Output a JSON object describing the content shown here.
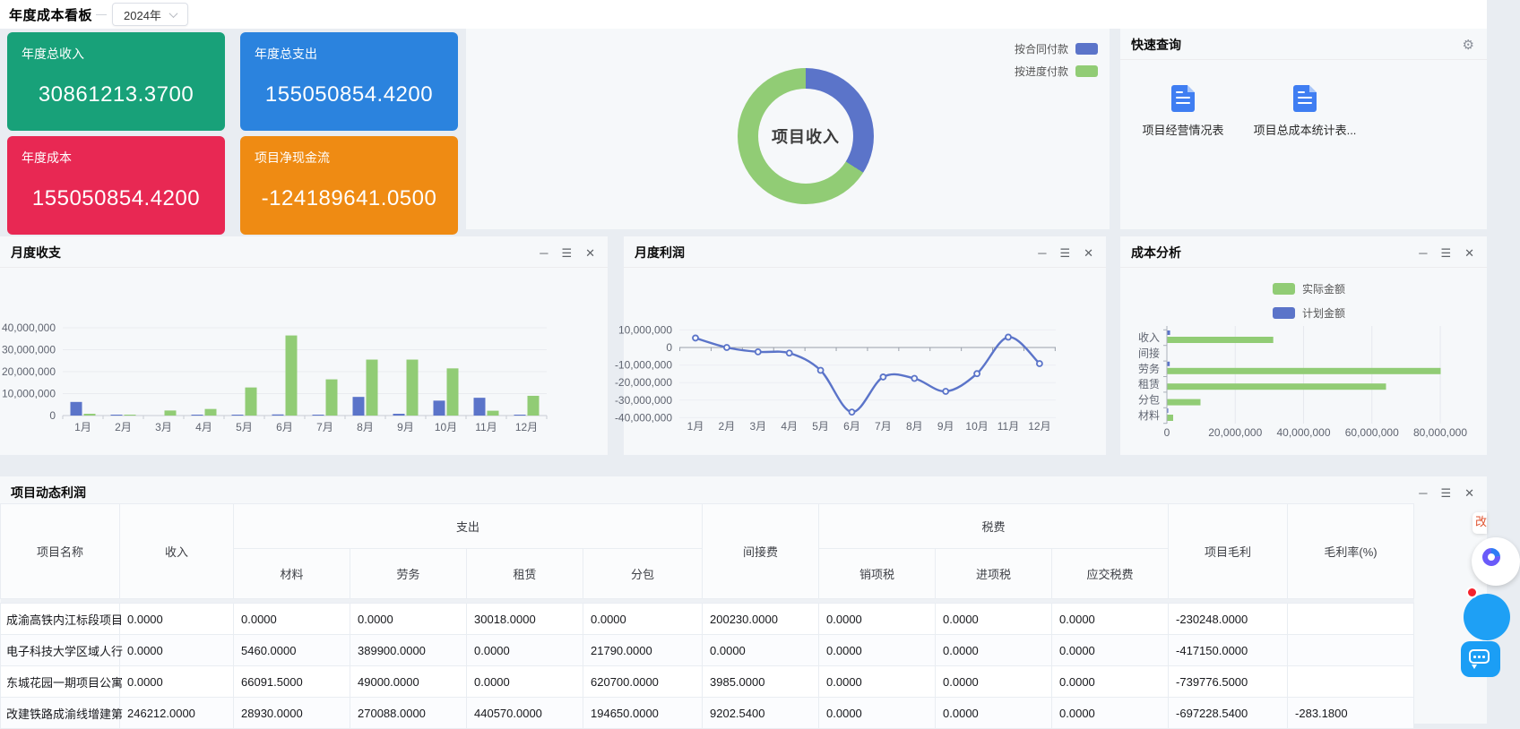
{
  "app": {
    "title": "年度成本看板",
    "year_select": {
      "value": "2024年"
    }
  },
  "kpi_cards": [
    {
      "label": "年度总收入",
      "value": "30861213.3700",
      "color": "#18a179"
    },
    {
      "label": "年度总支出",
      "value": "155050854.4200",
      "color": "#2b83de"
    },
    {
      "label": "年度成本",
      "value": "155050854.4200",
      "color": "#e82853"
    },
    {
      "label": "项目净现金流",
      "value": "-124189641.0500",
      "color": "#ef8b13"
    }
  ],
  "quick_query": {
    "title": "快速查询",
    "items": [
      {
        "label": "项目经营情况表"
      },
      {
        "label": "项目总成本统计表..."
      }
    ]
  },
  "panels": {
    "monthly_balance_title": "月度收支",
    "monthly_profit_title": "月度利润",
    "cost_analysis_title": "成本分析",
    "table_title": "项目动态利润"
  },
  "chart_data": [
    {
      "id": "project-income-donut",
      "type": "pie",
      "center_label": "项目收入",
      "legend_position": "top-right",
      "series": [
        {
          "name": "按合同付款",
          "color": "#5b74c9",
          "percent": 34
        },
        {
          "name": "按进度付款",
          "color": "#91cc75",
          "percent": 66
        }
      ]
    },
    {
      "id": "monthly-balance",
      "type": "bar",
      "title": "月度收支",
      "categories": [
        "1月",
        "2月",
        "3月",
        "4月",
        "5月",
        "6月",
        "7月",
        "8月",
        "9月",
        "10月",
        "11月",
        "12月"
      ],
      "series": [
        {
          "color": "#5b74c9",
          "values": [
            6200000,
            400000,
            0,
            400000,
            150000,
            500000,
            300000,
            8500000,
            800000,
            6800000,
            8100000,
            300000
          ]
        },
        {
          "color": "#91cc75",
          "values": [
            800000,
            400000,
            2300000,
            3000000,
            12800000,
            36500000,
            16500000,
            25500000,
            25500000,
            21500000,
            2200000,
            9000000
          ]
        }
      ],
      "ylim": [
        0,
        40000000
      ],
      "yticks": [
        {
          "v": 0,
          "label": "0"
        },
        {
          "v": 10000000,
          "label": "10,000,000"
        },
        {
          "v": 20000000,
          "label": "20,000,000"
        },
        {
          "v": 30000000,
          "label": "30,000,000"
        },
        {
          "v": 40000000,
          "label": "40,000,000"
        }
      ]
    },
    {
      "id": "monthly-profit",
      "type": "line",
      "title": "月度利润",
      "color": "#5b74c9",
      "categories": [
        "1月",
        "2月",
        "3月",
        "4月",
        "5月",
        "6月",
        "7月",
        "8月",
        "9月",
        "10月",
        "11月",
        "12月"
      ],
      "values": [
        5400000,
        0,
        -2500000,
        -3200000,
        -13000000,
        -36800000,
        -16800000,
        -17600000,
        -25000000,
        -14900000,
        5900000,
        -9200000
      ],
      "ylim": [
        -40000000,
        10000000
      ],
      "yticks": [
        {
          "v": 10000000,
          "label": "10,000,000"
        },
        {
          "v": 0,
          "label": "0"
        },
        {
          "v": -10000000,
          "label": "-10,000,000"
        },
        {
          "v": -20000000,
          "label": "-20,000,000"
        },
        {
          "v": -30000000,
          "label": "-30,000,000"
        },
        {
          "v": -40000000,
          "label": "-40,000,000"
        }
      ]
    },
    {
      "id": "cost-analysis",
      "type": "hbar",
      "title": "成本分析",
      "categories": [
        "收入",
        "间接",
        "劳务",
        "租赁",
        "分包",
        "材料"
      ],
      "series": [
        {
          "name": "实际金额",
          "color": "#91cc75",
          "values": [
            31000000,
            0,
            80000000,
            64000000,
            9700000,
            1700000
          ]
        },
        {
          "name": "计划金额",
          "color": "#5b74c9",
          "values": [
            800000,
            0,
            700000,
            0,
            0,
            200000
          ]
        }
      ],
      "xlim": [
        0,
        80000000
      ],
      "xticks": [
        {
          "v": 0,
          "label": "0"
        },
        {
          "v": 20000000,
          "label": "20,000,000"
        },
        {
          "v": 40000000,
          "label": "40,000,000"
        },
        {
          "v": 60000000,
          "label": "60,000,000"
        },
        {
          "v": 80000000,
          "label": "80,000,000"
        }
      ]
    }
  ],
  "table": {
    "title": "项目动态利润",
    "columns": {
      "name": "项目名称",
      "income": "收入",
      "expense_group": "支出",
      "expense_cols": [
        "材料",
        "劳务",
        "租赁",
        "分包"
      ],
      "indirect": "间接费",
      "tax_group": "税费",
      "tax_cols": [
        "销项税",
        "进项税",
        "应交税费"
      ],
      "gross": "项目毛利",
      "margin": "毛利率(%)"
    },
    "rows": [
      {
        "name": "成渝高铁内江标段项目",
        "cells": [
          "0.0000",
          "0.0000",
          "0.0000",
          "30018.0000",
          "0.0000",
          "200230.0000",
          "0.0000",
          "0.0000",
          "0.0000",
          "-230248.0000",
          ""
        ]
      },
      {
        "name": "电子科技大学区域人行",
        "cells": [
          "0.0000",
          "5460.0000",
          "389900.0000",
          "0.0000",
          "21790.0000",
          "0.0000",
          "0.0000",
          "0.0000",
          "0.0000",
          "-417150.0000",
          ""
        ]
      },
      {
        "name": "东城花园一期项目公寓",
        "cells": [
          "0.0000",
          "66091.5000",
          "49000.0000",
          "0.0000",
          "620700.0000",
          "3985.0000",
          "0.0000",
          "0.0000",
          "0.0000",
          "-739776.5000",
          ""
        ]
      },
      {
        "name": "改建铁路成渝线增建第",
        "cells": [
          "246212.0000",
          "28930.0000",
          "270088.0000",
          "440570.0000",
          "194650.0000",
          "9202.5400",
          "0.0000",
          "0.0000",
          "0.0000",
          "-697228.5400",
          "-283.1800"
        ]
      }
    ]
  },
  "floating": {
    "badge_text": "改"
  }
}
